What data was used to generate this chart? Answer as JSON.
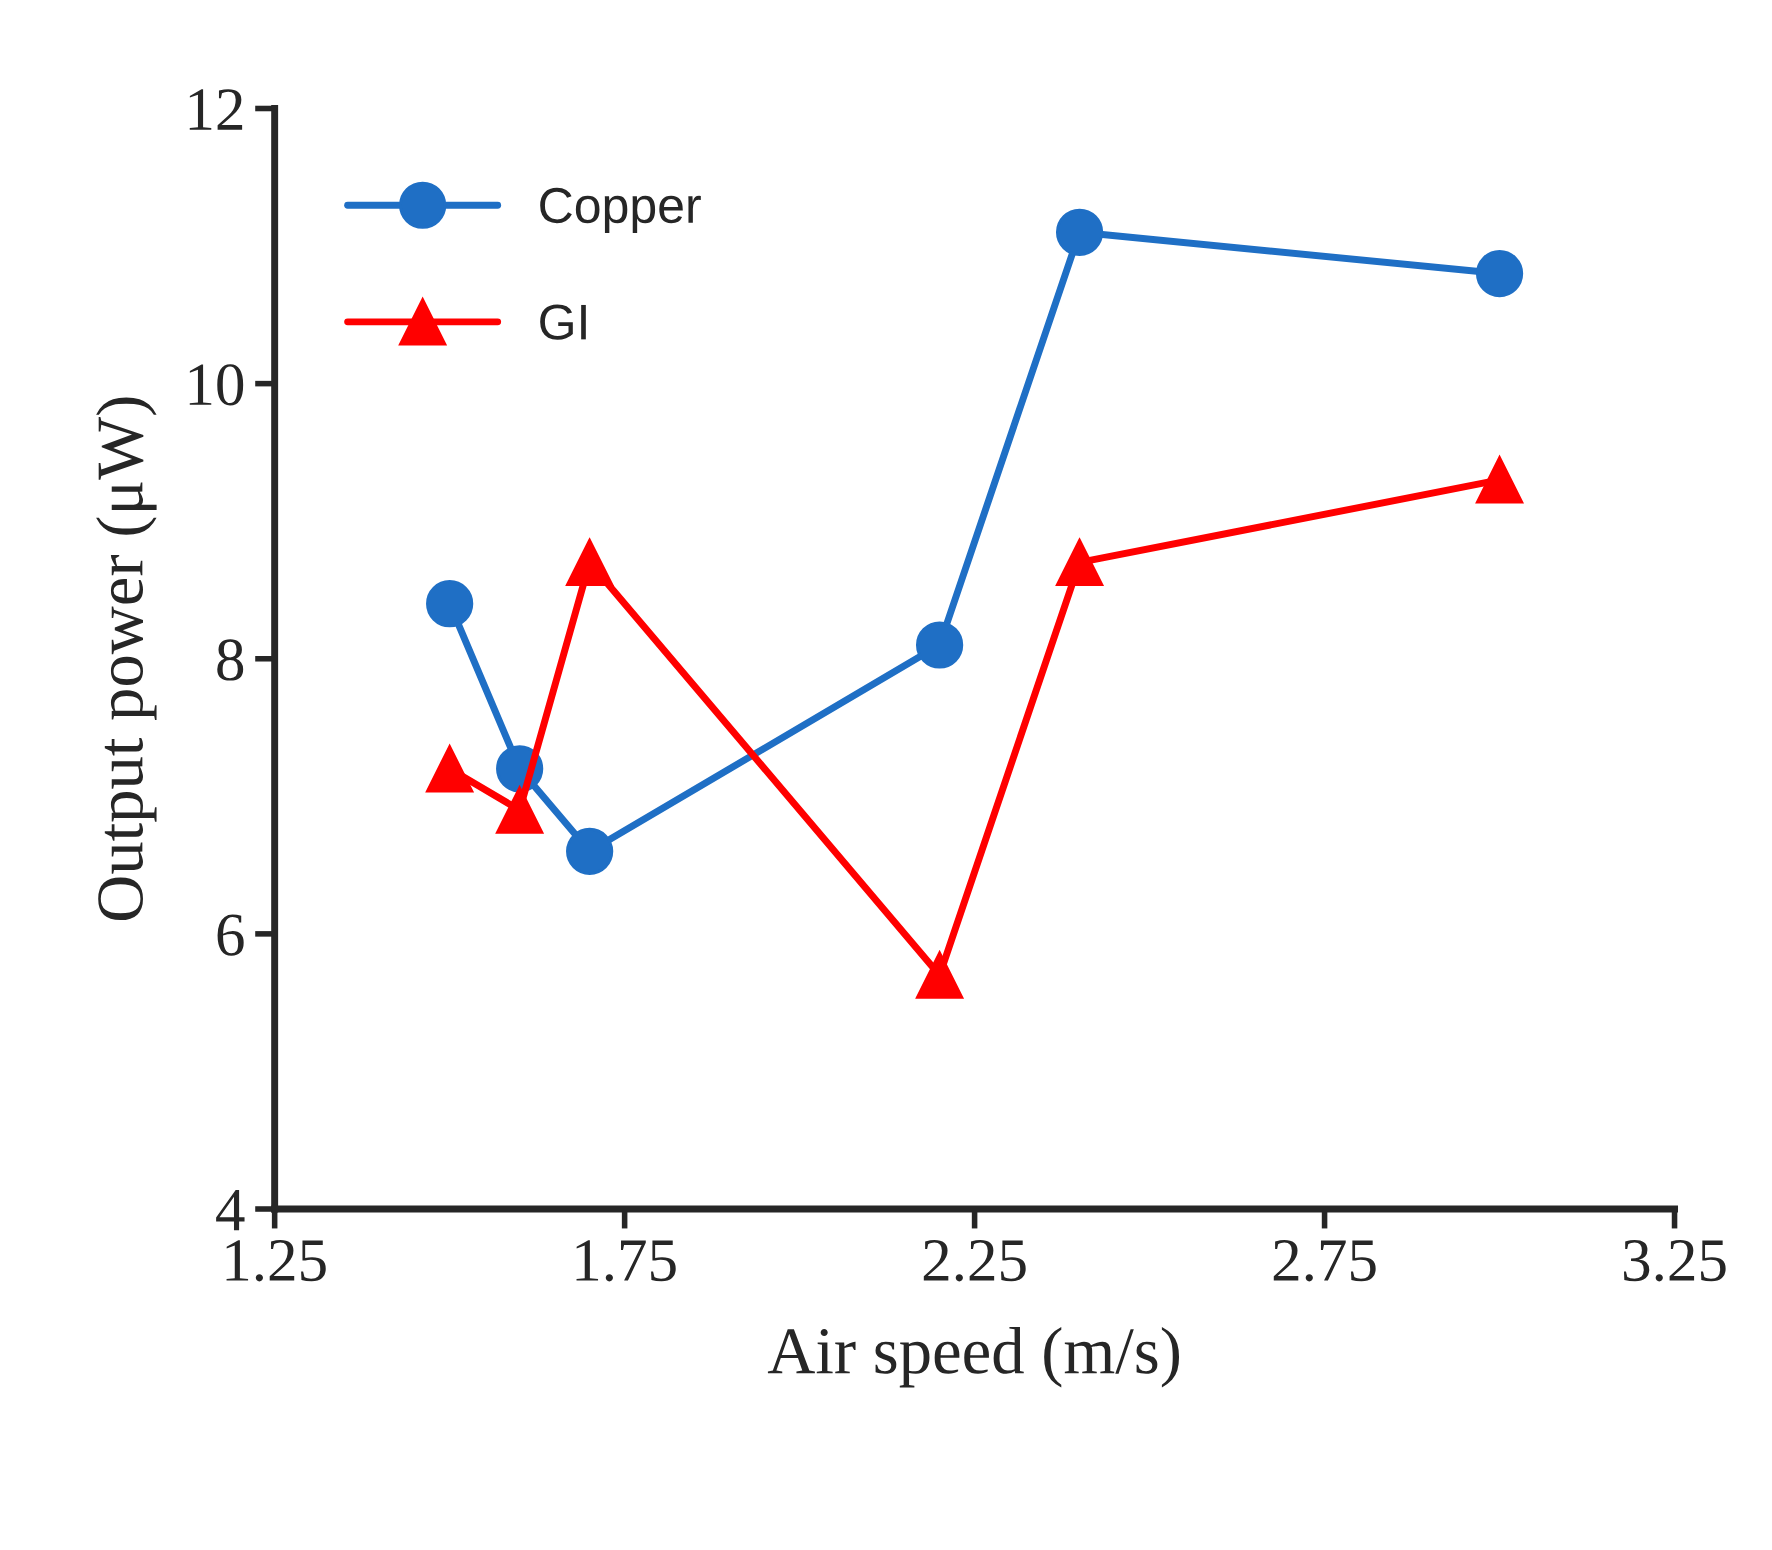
{
  "chart_data": {
    "type": "line",
    "xlabel": "Air speed (m/s)",
    "ylabel": "Output power (μW)",
    "x": [
      1.5,
      1.6,
      1.7,
      2.2,
      2.4,
      3.0
    ],
    "series": [
      {
        "name": "Copper",
        "color": "#1f6fc5",
        "marker": "circle",
        "values": [
          8.4,
          7.2,
          6.6,
          8.1,
          11.1,
          10.8
        ]
      },
      {
        "name": "GI",
        "color": "#ff0000",
        "marker": "triangle",
        "values": [
          7.2,
          6.9,
          8.7,
          5.7,
          8.7,
          9.3
        ]
      }
    ],
    "xlim": [
      1.25,
      3.25
    ],
    "xticks": [
      1.25,
      1.75,
      2.25,
      2.75,
      3.25
    ],
    "ylim": [
      4,
      12
    ],
    "yticks": [
      4,
      6,
      8,
      10,
      12
    ],
    "grid": false,
    "legend": "top left",
    "line_style": "solid"
  }
}
